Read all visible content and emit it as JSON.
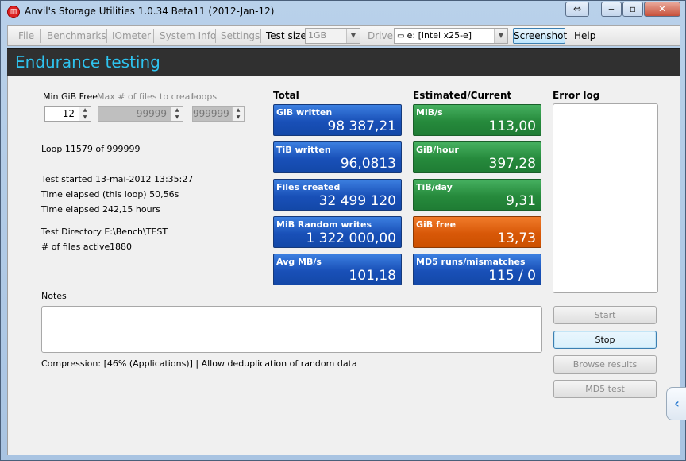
{
  "window": {
    "title": "Anvil's Storage Utilities 1.0.34 Beta11 (2012-Jan-12)",
    "icon_name": "app-logo-icon",
    "controls": {
      "extra": "⇔",
      "minimize": "‒",
      "maximize": "▫",
      "close": "✕"
    }
  },
  "menu": {
    "file": "File",
    "benchmarks": "Benchmarks",
    "iometer": "IOmeter",
    "system_info": "System Info",
    "settings": "Settings",
    "test_size_label": "Test size",
    "test_size_value": "1GB",
    "drive_label": "Drive",
    "drive_value": "e: [intel x25-e]",
    "screenshot": "Screenshot",
    "help": "Help"
  },
  "header": {
    "title": "Endurance testing"
  },
  "params": {
    "min_gib_free_label": "Min GiB Free",
    "min_gib_free_value": "12",
    "max_files_label": "Max # of files to create",
    "max_files_value": "99999",
    "loops_label": "Loops",
    "loops_value": "999999"
  },
  "status": {
    "loop": "Loop 11579 of 999999",
    "test_started": "Test started 13-mai-2012 13:35:27",
    "time_loop": "Time elapsed (this loop) 50,56s",
    "time_total": "Time elapsed 242,15 hours",
    "test_dir": "Test Directory E:\\Bench\\TEST",
    "files_active_label": "# of files active",
    "files_active_value": "1880"
  },
  "totals": {
    "title": "Total",
    "tiles": [
      {
        "label": "GiB written",
        "value": "98 387,21"
      },
      {
        "label": "TiB written",
        "value": "96,0813"
      },
      {
        "label": "Files created",
        "value": "32 499 120"
      },
      {
        "label": "MiB Random writes",
        "value": "1 322 000,00"
      },
      {
        "label": "Avg MB/s",
        "value": "101,18"
      }
    ]
  },
  "estimated": {
    "title": "Estimated/Current",
    "tiles": [
      {
        "label": "MiB/s",
        "value": "113,00"
      },
      {
        "label": "GiB/hour",
        "value": "397,28"
      },
      {
        "label": "TiB/day",
        "value": "9,31"
      },
      {
        "label": "GiB free",
        "value": "13,73"
      },
      {
        "label": "MD5 runs/mismatches",
        "value": "115 / 0"
      }
    ]
  },
  "error_log": {
    "title": "Error log",
    "content": ""
  },
  "notes": {
    "label": "Notes",
    "content": ""
  },
  "compression_text": "Compression: [46% (Applications)] | Allow deduplication of random data",
  "buttons": {
    "start": "Start",
    "stop": "Stop",
    "browse": "Browse results",
    "md5": "MD5 test"
  },
  "side_tab": "‹",
  "colors": {
    "header_text": "#2ec3ef",
    "tile_blue": "#1950b8",
    "tile_green": "#268a3c",
    "tile_orange": "#d85808"
  }
}
